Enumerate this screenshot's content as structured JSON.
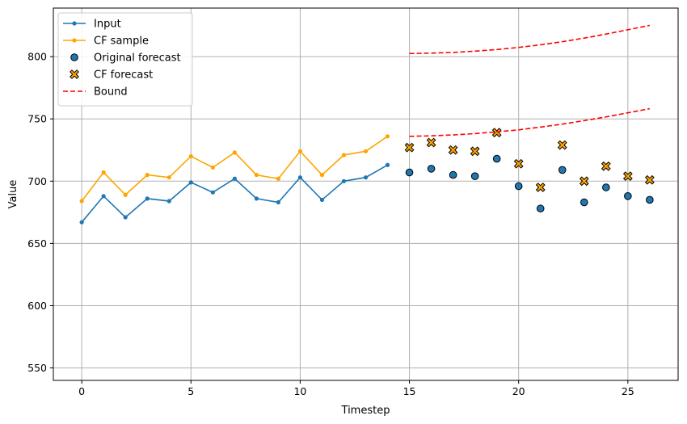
{
  "chart_data": {
    "type": "line",
    "title": "",
    "xlabel": "Timestep",
    "ylabel": "Value",
    "xlim": [
      -1.3,
      27.3
    ],
    "ylim": [
      540,
      839
    ],
    "xticks": [
      0,
      5,
      10,
      15,
      20,
      25
    ],
    "yticks": [
      550,
      600,
      650,
      700,
      750,
      800
    ],
    "grid": true,
    "legend_position": "top-left",
    "colors": {
      "input": "#1f77b4",
      "cf_sample": "#ffa500",
      "original_forecast": "#1f77b4",
      "cf_forecast": "#ffa500",
      "bound": "#ff0000",
      "grid": "#b0b0b0"
    },
    "series": [
      {
        "name": "Input",
        "kind": "line-marker",
        "x": [
          0,
          1,
          2,
          3,
          4,
          5,
          6,
          7,
          8,
          9,
          10,
          11,
          12,
          13,
          14
        ],
        "y": [
          667,
          688,
          671,
          686,
          684,
          699,
          691,
          702,
          686,
          683,
          703,
          685,
          700,
          703,
          713
        ]
      },
      {
        "name": "CF sample",
        "kind": "line-marker",
        "x": [
          0,
          1,
          2,
          3,
          4,
          5,
          6,
          7,
          8,
          9,
          10,
          11,
          12,
          13,
          14
        ],
        "y": [
          684,
          707,
          689,
          705,
          703,
          720,
          711,
          723,
          705,
          702,
          724,
          705,
          721,
          724,
          736
        ]
      },
      {
        "name": "Original forecast",
        "kind": "scatter-circle",
        "x": [
          15,
          16,
          17,
          18,
          19,
          20,
          21,
          22,
          23,
          24,
          25,
          26
        ],
        "y": [
          707,
          710,
          705,
          704,
          718,
          696,
          678,
          709,
          683,
          695,
          688,
          685
        ]
      },
      {
        "name": "CF forecast",
        "kind": "scatter-x",
        "x": [
          15,
          16,
          17,
          18,
          19,
          20,
          21,
          22,
          23,
          24,
          25,
          26
        ],
        "y": [
          727,
          731,
          725,
          724,
          739,
          714,
          695,
          729,
          700,
          712,
          704,
          701
        ]
      },
      {
        "name": "Bound",
        "kind": "dashed-line",
        "x": [
          15,
          16,
          17,
          18,
          19,
          20,
          21,
          22,
          23,
          24,
          25,
          26
        ],
        "y": [
          802.5,
          802.8,
          803.4,
          804.4,
          805.7,
          807.4,
          809.5,
          812.0,
          814.9,
          818.1,
          821.6,
          825.1
        ]
      },
      {
        "name": "Bound lower",
        "kind": "dashed-line",
        "legend": false,
        "x": [
          15,
          16,
          17,
          18,
          19,
          20,
          21,
          22,
          23,
          24,
          25,
          26
        ],
        "y": [
          736,
          736.4,
          737.1,
          738.2,
          739.6,
          741.2,
          743.4,
          745.8,
          748.6,
          751.6,
          754.9,
          758.2
        ]
      }
    ],
    "legend": [
      "Input",
      "CF sample",
      "Original forecast",
      "CF forecast",
      "Bound"
    ]
  }
}
